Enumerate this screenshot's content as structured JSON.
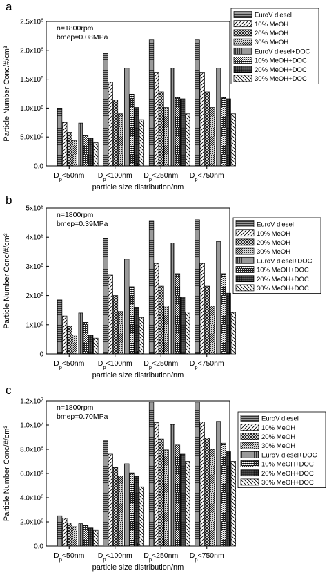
{
  "chart_data": [
    {
      "panel_label": "a",
      "type": "bar",
      "condition_lines": [
        "n=1800rpm",
        "bmep=0.08MPa"
      ],
      "xlabel": "particle size distribution/nm",
      "ylabel": "Particle Number Conc/#/cm³",
      "ylim": [
        0,
        2500000
      ],
      "ytick_values": [
        0,
        500000,
        1000000,
        1500000,
        2000000,
        2500000
      ],
      "ytick_labels": [
        "0.0",
        "5.0x10⁵",
        "1.0x10⁶",
        "1.5x10⁶",
        "2.0x10⁶",
        "2.5x10⁶"
      ],
      "categories": [
        "Dp<50nm",
        "Dp<100nm",
        "Dp<250nm",
        "Dp<750nm"
      ],
      "legend_position": "top-right",
      "series": [
        {
          "name": "EuroV diesel",
          "values": [
            1000000,
            1950000,
            2180000,
            2180000
          ]
        },
        {
          "name": "10% MeOH",
          "values": [
            750000,
            1450000,
            1620000,
            1620000
          ]
        },
        {
          "name": "20% MeOH",
          "values": [
            580000,
            1140000,
            1280000,
            1280000
          ]
        },
        {
          "name": "30% MeOH",
          "values": [
            440000,
            900000,
            1010000,
            1010000
          ]
        },
        {
          "name": "EuroV diesel+DOC",
          "values": [
            740000,
            1690000,
            1690000,
            1690000
          ]
        },
        {
          "name": "10% MeOH+DOC",
          "values": [
            530000,
            1240000,
            1180000,
            1180000
          ]
        },
        {
          "name": "20% MeOH+DOC",
          "values": [
            480000,
            1010000,
            1160000,
            1160000
          ]
        },
        {
          "name": "30% MeOH+DOC",
          "values": [
            400000,
            800000,
            900000,
            900000
          ]
        }
      ]
    },
    {
      "panel_label": "b",
      "type": "bar",
      "condition_lines": [
        "n=1800rpm",
        "bmep=0.39MPa"
      ],
      "xlabel": "particle size distribution/nm",
      "ylabel": "Particle Number Conc/#/cm³",
      "ylim": [
        0,
        5000000
      ],
      "ytick_values": [
        0,
        1000000,
        2000000,
        3000000,
        4000000,
        5000000
      ],
      "ytick_labels": [
        "0",
        "1x10⁶",
        "2x10⁶",
        "3x10⁶",
        "4x10⁶",
        "5x10⁶"
      ],
      "categories": [
        "Dp<50nm",
        "Dp<100nm",
        "Dp<250nm",
        "Dp<750nm"
      ],
      "legend_position": "right",
      "series": [
        {
          "name": "EuroV diesel",
          "values": [
            1850000,
            3950000,
            4550000,
            4600000
          ]
        },
        {
          "name": "10% MeOH",
          "values": [
            1300000,
            2700000,
            3100000,
            3100000
          ]
        },
        {
          "name": "20% MeOH",
          "values": [
            950000,
            2000000,
            2320000,
            2320000
          ]
        },
        {
          "name": "30% MeOH",
          "values": [
            650000,
            1450000,
            1650000,
            1650000
          ]
        },
        {
          "name": "EuroV diesel+DOC",
          "values": [
            1400000,
            3250000,
            3800000,
            3850000
          ]
        },
        {
          "name": "10% MeOH+DOC",
          "values": [
            1080000,
            2300000,
            2750000,
            2750000
          ]
        },
        {
          "name": "20% MeOH+DOC",
          "values": [
            650000,
            1600000,
            1950000,
            2080000
          ]
        },
        {
          "name": "30% MeOH+DOC",
          "values": [
            540000,
            1250000,
            1430000,
            1420000
          ]
        }
      ]
    },
    {
      "panel_label": "c",
      "type": "bar",
      "condition_lines": [
        "n=1800rpm",
        "bmep=0.70MPa"
      ],
      "xlabel": "particle size distribution/nm",
      "ylabel": "Particle Number Conc/#/cm³",
      "ylim": [
        0,
        12000000
      ],
      "ytick_values": [
        0,
        2000000,
        4000000,
        6000000,
        8000000,
        10000000,
        12000000
      ],
      "ytick_labels": [
        "0.0",
        "2.0x10⁶",
        "4.0x10⁶",
        "6.0x10⁶",
        "8.0x10⁶",
        "1.0x10⁷",
        "1.2x10⁷"
      ],
      "categories": [
        "Dp<50nm",
        "Dp<100nm",
        "Dp<250nm",
        "Dp<750nm"
      ],
      "legend_position": "right",
      "series": [
        {
          "name": "EuroV diesel",
          "values": [
            2500000,
            8700000,
            11900000,
            11900000
          ]
        },
        {
          "name": "10% MeOH",
          "values": [
            2300000,
            7600000,
            10200000,
            10250000
          ]
        },
        {
          "name": "20% MeOH",
          "values": [
            1900000,
            6500000,
            8850000,
            8950000
          ]
        },
        {
          "name": "30% MeOH",
          "values": [
            1600000,
            5800000,
            7950000,
            8000000
          ]
        },
        {
          "name": "EuroV diesel+DOC",
          "values": [
            1850000,
            6800000,
            10050000,
            10300000
          ]
        },
        {
          "name": "10% MeOH+DOC",
          "values": [
            1700000,
            6050000,
            8350000,
            8500000
          ]
        },
        {
          "name": "20% MeOH+DOC",
          "values": [
            1500000,
            5800000,
            7600000,
            7800000
          ]
        },
        {
          "name": "30% MeOH+DOC",
          "values": [
            1300000,
            4900000,
            7000000,
            7000000
          ]
        }
      ]
    }
  ],
  "pattern_names": [
    "horizontal-lines",
    "diagonal-lines",
    "crosshatch",
    "dense-diagonal",
    "vertical-lines",
    "mixed-diagonal",
    "grid",
    "back-diagonal"
  ]
}
